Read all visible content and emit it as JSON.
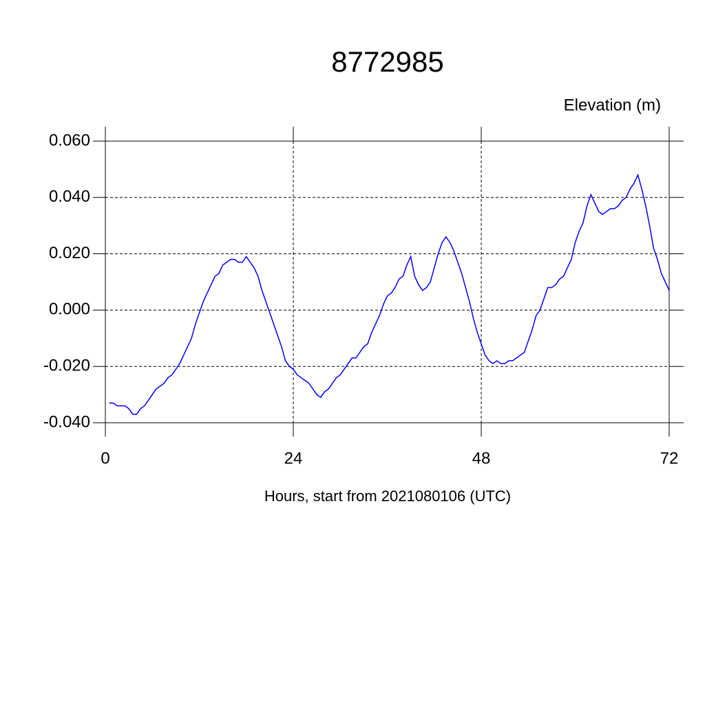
{
  "chart_data": {
    "type": "line",
    "title": "8772985",
    "ylabel": "Elevation (m)",
    "xlabel": "Hours, start from 2021080106 (UTC)",
    "xlim": [
      0,
      72
    ],
    "xticks": [
      0,
      24,
      48,
      72
    ],
    "ylim": [
      -0.04,
      0.06
    ],
    "yticks": [
      {
        "value": -0.04,
        "label": "-0.040"
      },
      {
        "value": -0.02,
        "label": "-0.020"
      },
      {
        "value": 0,
        "label": "0.000"
      },
      {
        "value": 0.02,
        "label": "0.020"
      },
      {
        "value": 0.04,
        "label": "0.040"
      },
      {
        "value": 0.06,
        "label": "0.060"
      }
    ],
    "grid": true,
    "x": [
      0.5,
      1,
      1.5,
      2,
      2.5,
      3,
      3.5,
      4,
      4.5,
      5,
      5.5,
      6,
      6.5,
      7,
      7.5,
      8,
      8.5,
      9,
      9.5,
      10,
      10.5,
      11,
      11.5,
      12,
      12.5,
      13,
      13.5,
      14,
      14.5,
      15,
      15.5,
      16,
      16.5,
      17,
      17.5,
      18,
      18.5,
      19,
      19.5,
      20,
      20.5,
      21,
      21.5,
      22,
      22.5,
      23,
      23.5,
      24,
      24.5,
      25,
      25.5,
      26,
      26.5,
      27,
      27.5,
      28,
      28.5,
      29,
      29.5,
      30,
      30.5,
      31,
      31.5,
      32,
      32.5,
      33,
      33.5,
      34,
      34.5,
      35,
      35.5,
      36,
      36.5,
      37,
      37.5,
      38,
      38.5,
      39,
      39.5,
      40,
      40.5,
      41,
      41.5,
      42,
      42.5,
      43,
      43.5,
      44,
      44.5,
      45,
      45.5,
      46,
      46.5,
      47,
      47.5,
      48,
      48.5,
      49,
      49.5,
      50,
      50.5,
      51,
      51.5,
      52,
      52.5,
      53,
      53.5,
      54,
      54.5,
      55,
      55.5,
      56,
      56.5,
      57,
      57.5,
      58,
      58.5,
      59,
      59.5,
      60,
      60.5,
      61,
      61.5,
      62,
      62.5,
      63,
      63.5,
      64,
      64.5,
      65,
      65.5,
      66,
      66.5,
      67,
      67.5,
      68,
      68.5,
      69,
      69.5,
      70,
      70.5,
      71,
      71.5,
      72
    ],
    "series": [
      {
        "color": "#0000ff",
        "values": [
          -0.033,
          -0.033,
          -0.034,
          -0.034,
          -0.034,
          -0.035,
          -0.037,
          -0.037,
          -0.035,
          -0.034,
          -0.032,
          -0.03,
          -0.028,
          -0.027,
          -0.026,
          -0.024,
          -0.023,
          -0.021,
          -0.019,
          -0.016,
          -0.013,
          -0.01,
          -0.005,
          -0.001,
          0.003,
          0.006,
          0.009,
          0.012,
          0.013,
          0.016,
          0.017,
          0.018,
          0.018,
          0.017,
          0.017,
          0.019,
          0.017,
          0.015,
          0.012,
          0.007,
          0.003,
          -0.001,
          -0.005,
          -0.009,
          -0.013,
          -0.018,
          -0.02,
          -0.021,
          -0.023,
          -0.024,
          -0.025,
          -0.026,
          -0.028,
          -0.03,
          -0.031,
          -0.029,
          -0.028,
          -0.026,
          -0.024,
          -0.023,
          -0.021,
          -0.019,
          -0.017,
          -0.017,
          -0.015,
          -0.013,
          -0.012,
          -0.008,
          -0.005,
          -0.002,
          0.002,
          0.005,
          0.006,
          0.008,
          0.011,
          0.012,
          0.016,
          0.019,
          0.012,
          0.009,
          0.007,
          0.008,
          0.01,
          0.015,
          0.02,
          0.024,
          0.026,
          0.024,
          0.021,
          0.017,
          0.013,
          0.008,
          0.003,
          -0.003,
          -0.008,
          -0.012,
          -0.016,
          -0.018,
          -0.019,
          -0.018,
          -0.019,
          -0.019,
          -0.018,
          -0.018,
          -0.017,
          -0.016,
          -0.015,
          -0.011,
          -0.007,
          -0.002,
          0.0,
          0.004,
          0.008,
          0.008,
          0.009,
          0.011,
          0.012,
          0.015,
          0.018,
          0.024,
          0.028,
          0.031,
          0.037,
          0.041,
          0.038,
          0.035,
          0.034,
          0.035,
          0.036,
          0.036,
          0.037,
          0.039,
          0.04,
          0.043,
          0.045,
          0.048,
          0.043,
          0.037,
          0.03,
          0.022,
          0.018,
          0.013,
          0.01,
          0.007
        ]
      }
    ]
  }
}
